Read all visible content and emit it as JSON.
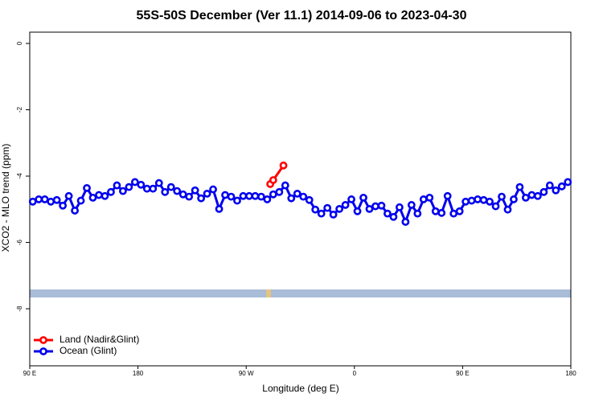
{
  "chart_data": {
    "type": "line",
    "title": "55S-50S December (Ver 11.1)   2014-09-06 to 2023-04-30",
    "xlabel": "Longitude (deg E)",
    "ylabel": "XCO2 - MLO trend (ppm)",
    "xlim": [
      90,
      540
    ],
    "ylim": [
      -9.72,
      0.34
    ],
    "xticks": [
      {
        "value": 90,
        "label": "90 E"
      },
      180,
      {
        "value": 270,
        "label": "90 W"
      },
      {
        "value": 360,
        "label": "0"
      },
      {
        "value": 450,
        "label": "90 E"
      },
      {
        "value": 540,
        "label": "180"
      }
    ],
    "yticks": [
      0,
      -2,
      -4,
      -6,
      -8
    ],
    "legend": "bottom-left",
    "series": [
      {
        "name": "Land (Nadir&Glint)",
        "color": "#ff0000",
        "x": [
          290,
          292.5,
          301
        ],
        "values": [
          -4.24,
          -4.12,
          -3.68
        ]
      },
      {
        "name": "Ocean (Glint)",
        "color": "#0000ee",
        "x": [
          92.5,
          97.5,
          102.5,
          107.5,
          112.5,
          117.5,
          122.5,
          127.5,
          132.5,
          137.5,
          142.5,
          147.5,
          152.5,
          157.5,
          162.5,
          167.5,
          172.5,
          177.5,
          182.5,
          187.5,
          192.5,
          197.5,
          202.5,
          207.5,
          212.5,
          217.5,
          222.5,
          227.5,
          232.5,
          237.5,
          242.5,
          247.5,
          252.5,
          257.5,
          262.5,
          267.5,
          272.5,
          277.5,
          282.5,
          287.5,
          292.5,
          297.5,
          302.5,
          307.5,
          312.5,
          317.5,
          322.5,
          327.5,
          332.5,
          337.5,
          342.5,
          347.5,
          352.5,
          357.5,
          362.5,
          367.5,
          372.5,
          377.5,
          382.5,
          387.5,
          392.5,
          397.5,
          402.5,
          407.5,
          412.5,
          417.5,
          422.5,
          427.5,
          432.5,
          437.5,
          442.5,
          447.5,
          452.5,
          457.5,
          462.5,
          467.5,
          472.5,
          477.5,
          482.5,
          487.5,
          492.5,
          497.5,
          502.5,
          507.5,
          512.5,
          517.5,
          522.5,
          527.5,
          532.5,
          537.5
        ],
        "values": [
          -4.77,
          -4.7,
          -4.7,
          -4.77,
          -4.72,
          -4.89,
          -4.6,
          -5.04,
          -4.74,
          -4.36,
          -4.65,
          -4.57,
          -4.6,
          -4.48,
          -4.28,
          -4.45,
          -4.33,
          -4.18,
          -4.26,
          -4.38,
          -4.38,
          -4.21,
          -4.48,
          -4.33,
          -4.45,
          -4.55,
          -4.62,
          -4.43,
          -4.67,
          -4.53,
          -4.4,
          -4.99,
          -4.57,
          -4.62,
          -4.74,
          -4.6,
          -4.6,
          -4.6,
          -4.62,
          -4.7,
          -4.55,
          -4.48,
          -4.28,
          -4.67,
          -4.53,
          -4.62,
          -4.72,
          -5.01,
          -5.13,
          -4.96,
          -5.16,
          -4.99,
          -4.87,
          -4.7,
          -5.06,
          -4.65,
          -4.99,
          -4.91,
          -4.89,
          -5.13,
          -5.23,
          -4.94,
          -5.38,
          -4.87,
          -5.13,
          -4.7,
          -4.65,
          -5.06,
          -5.11,
          -4.6,
          -5.13,
          -5.06,
          -4.77,
          -4.74,
          -4.7,
          -4.72,
          -4.77,
          -4.91,
          -4.62,
          -5.01,
          -4.7,
          -4.33,
          -4.65,
          -4.57,
          -4.6,
          -4.48,
          -4.28,
          -4.43,
          -4.31,
          -4.18
        ]
      }
    ]
  }
}
